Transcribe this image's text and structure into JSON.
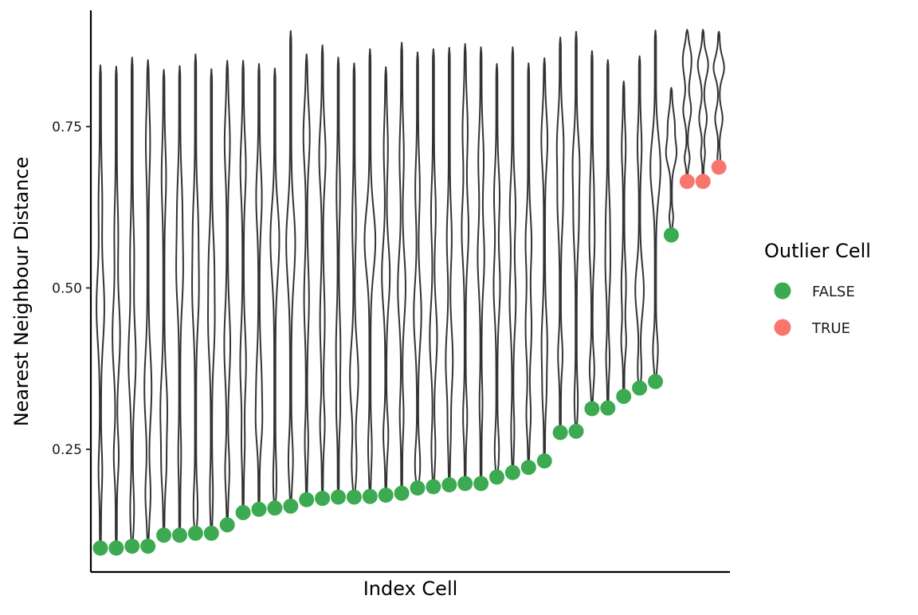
{
  "chart_data": {
    "type": "violin",
    "xlabel": "Index Cell",
    "ylabel": "Nearest Neighbour Distance",
    "ylim": [
      0.06,
      0.93
    ],
    "yticks": [
      0.25,
      0.5,
      0.75
    ],
    "ytick_labels": [
      "0.25",
      "0.50",
      "0.75"
    ],
    "legend": {
      "title": "Outlier Cell",
      "position": "right",
      "entries": [
        {
          "label": "FALSE",
          "color": "#3BAA50"
        },
        {
          "label": "TRUE",
          "color": "#F8766D"
        }
      ]
    },
    "cells": [
      {
        "index": 1,
        "nn_distance": 0.097,
        "max_distance": 0.845,
        "outlier": false
      },
      {
        "index": 2,
        "nn_distance": 0.097,
        "max_distance": 0.843,
        "outlier": false
      },
      {
        "index": 3,
        "nn_distance": 0.1,
        "max_distance": 0.857,
        "outlier": false
      },
      {
        "index": 4,
        "nn_distance": 0.1,
        "max_distance": 0.853,
        "outlier": false
      },
      {
        "index": 5,
        "nn_distance": 0.117,
        "max_distance": 0.838,
        "outlier": false
      },
      {
        "index": 6,
        "nn_distance": 0.117,
        "max_distance": 0.844,
        "outlier": false
      },
      {
        "index": 7,
        "nn_distance": 0.12,
        "max_distance": 0.862,
        "outlier": false
      },
      {
        "index": 8,
        "nn_distance": 0.12,
        "max_distance": 0.839,
        "outlier": false
      },
      {
        "index": 9,
        "nn_distance": 0.133,
        "max_distance": 0.852,
        "outlier": false
      },
      {
        "index": 10,
        "nn_distance": 0.152,
        "max_distance": 0.852,
        "outlier": false
      },
      {
        "index": 11,
        "nn_distance": 0.157,
        "max_distance": 0.847,
        "outlier": false
      },
      {
        "index": 12,
        "nn_distance": 0.159,
        "max_distance": 0.84,
        "outlier": false
      },
      {
        "index": 13,
        "nn_distance": 0.162,
        "max_distance": 0.898,
        "outlier": false
      },
      {
        "index": 14,
        "nn_distance": 0.172,
        "max_distance": 0.862,
        "outlier": false
      },
      {
        "index": 15,
        "nn_distance": 0.174,
        "max_distance": 0.876,
        "outlier": false
      },
      {
        "index": 16,
        "nn_distance": 0.176,
        "max_distance": 0.857,
        "outlier": false
      },
      {
        "index": 17,
        "nn_distance": 0.176,
        "max_distance": 0.848,
        "outlier": false
      },
      {
        "index": 18,
        "nn_distance": 0.177,
        "max_distance": 0.87,
        "outlier": false
      },
      {
        "index": 19,
        "nn_distance": 0.179,
        "max_distance": 0.842,
        "outlier": false
      },
      {
        "index": 20,
        "nn_distance": 0.182,
        "max_distance": 0.88,
        "outlier": false
      },
      {
        "index": 21,
        "nn_distance": 0.19,
        "max_distance": 0.865,
        "outlier": false
      },
      {
        "index": 22,
        "nn_distance": 0.192,
        "max_distance": 0.87,
        "outlier": false
      },
      {
        "index": 23,
        "nn_distance": 0.195,
        "max_distance": 0.872,
        "outlier": false
      },
      {
        "index": 24,
        "nn_distance": 0.197,
        "max_distance": 0.878,
        "outlier": false
      },
      {
        "index": 25,
        "nn_distance": 0.197,
        "max_distance": 0.873,
        "outlier": false
      },
      {
        "index": 26,
        "nn_distance": 0.207,
        "max_distance": 0.847,
        "outlier": false
      },
      {
        "index": 27,
        "nn_distance": 0.214,
        "max_distance": 0.873,
        "outlier": false
      },
      {
        "index": 28,
        "nn_distance": 0.222,
        "max_distance": 0.848,
        "outlier": false
      },
      {
        "index": 29,
        "nn_distance": 0.232,
        "max_distance": 0.856,
        "outlier": false
      },
      {
        "index": 30,
        "nn_distance": 0.276,
        "max_distance": 0.888,
        "outlier": false
      },
      {
        "index": 31,
        "nn_distance": 0.278,
        "max_distance": 0.897,
        "outlier": false
      },
      {
        "index": 32,
        "nn_distance": 0.313,
        "max_distance": 0.867,
        "outlier": false
      },
      {
        "index": 33,
        "nn_distance": 0.314,
        "max_distance": 0.853,
        "outlier": false
      },
      {
        "index": 34,
        "nn_distance": 0.332,
        "max_distance": 0.82,
        "outlier": false
      },
      {
        "index": 35,
        "nn_distance": 0.345,
        "max_distance": 0.859,
        "outlier": false
      },
      {
        "index": 36,
        "nn_distance": 0.355,
        "max_distance": 0.899,
        "outlier": false
      },
      {
        "index": 37,
        "nn_distance": 0.582,
        "max_distance": 0.81,
        "outlier": false
      },
      {
        "index": 38,
        "nn_distance": 0.665,
        "max_distance": 0.9,
        "outlier": true
      },
      {
        "index": 39,
        "nn_distance": 0.665,
        "max_distance": 0.9,
        "outlier": true
      },
      {
        "index": 40,
        "nn_distance": 0.687,
        "max_distance": 0.897,
        "outlier": true
      }
    ]
  }
}
